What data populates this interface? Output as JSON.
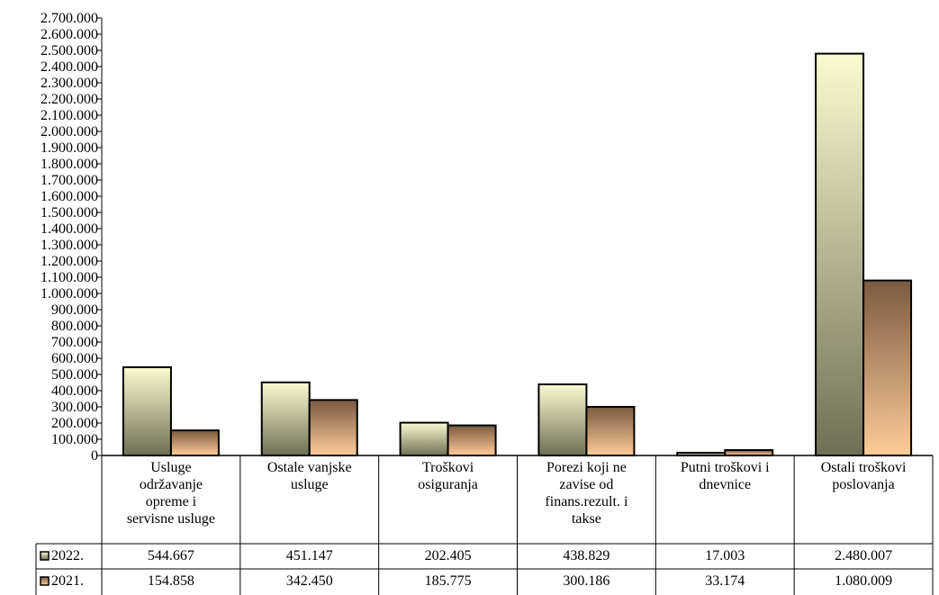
{
  "colors": {
    "series_2022_top": "#fbfbd2",
    "series_2022_bottom": "#6f6f54",
    "series_2021_top": "#7a5a40",
    "series_2021_bottom": "#ffcc99",
    "outline": "#000000"
  },
  "chart_data": {
    "type": "bar",
    "categories": [
      [
        "Usluge",
        "održavanje",
        "opreme i",
        "servisne usluge"
      ],
      [
        "Ostale vanjske",
        "usluge"
      ],
      [
        "Troškovi",
        "osiguranja"
      ],
      [
        "Porezi koji ne",
        "zavise od",
        "finans.rezult. i",
        "takse"
      ],
      [
        "Putni troškovi i",
        "dnevnice"
      ],
      [
        "Ostali troškovi",
        "poslovanja"
      ]
    ],
    "series": [
      {
        "name": "2022.",
        "values": [
          544667,
          451147,
          202405,
          438829,
          17003,
          2480007
        ],
        "labels": [
          "544.667",
          "451.147",
          "202.405",
          "438.829",
          "17.003",
          "2.480.007"
        ]
      },
      {
        "name": "2021.",
        "values": [
          154858,
          342450,
          185775,
          300186,
          33174,
          1080009
        ],
        "labels": [
          "154.858",
          "342.450",
          "185.775",
          "300.186",
          "33.174",
          "1.080.009"
        ]
      }
    ],
    "ylim": [
      0,
      2700000
    ],
    "y_ticks": [
      "0",
      "100.000",
      "200.000",
      "300.000",
      "400.000",
      "500.000",
      "600.000",
      "700.000",
      "800.000",
      "900.000",
      "1.000.000",
      "1.100.000",
      "1.200.000",
      "1.300.000",
      "1.400.000",
      "1.500.000",
      "1.600.000",
      "1.700.000",
      "1.800.000",
      "1.900.000",
      "2.000.000",
      "2.100.000",
      "2.200.000",
      "2.300.000",
      "2.400.000",
      "2.500.000",
      "2.600.000",
      "2.700.000"
    ],
    "y_tick_step": 100000,
    "data_table": true,
    "grid": false,
    "legend": "in data table"
  }
}
